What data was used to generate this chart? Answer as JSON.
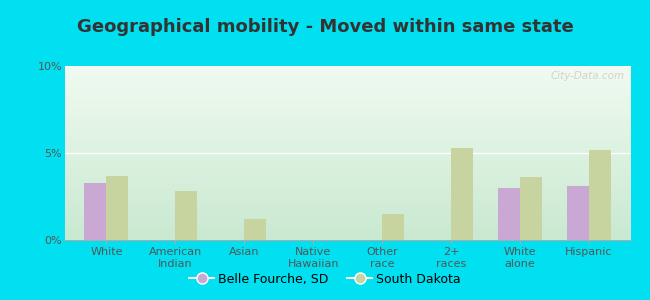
{
  "title": "Geographical mobility - Moved within same state",
  "categories": [
    "White",
    "American\nIndian",
    "Asian",
    "Native\nHawaiian",
    "Other\nrace",
    "2+\nraces",
    "White\nalone",
    "Hispanic"
  ],
  "belle_fourche": [
    3.3,
    0.0,
    0.0,
    0.0,
    0.0,
    0.0,
    3.0,
    3.1
  ],
  "south_dakota": [
    3.7,
    2.8,
    1.2,
    0.0,
    1.5,
    5.3,
    3.6,
    5.2
  ],
  "belle_color": "#c9a8d4",
  "sd_color": "#c8d4a0",
  "background_outer": "#00e0f0",
  "background_inner_top": "#f0faf0",
  "background_inner_bottom": "#c8e8d0",
  "ylim": [
    0,
    10
  ],
  "yticks": [
    0,
    5,
    10
  ],
  "ytick_labels": [
    "0%",
    "5%",
    "10%"
  ],
  "legend_belle": "Belle Fourche, SD",
  "legend_sd": "South Dakota",
  "bar_width": 0.32,
  "title_fontsize": 13,
  "tick_fontsize": 8,
  "legend_fontsize": 9,
  "watermark": "City-Data.com"
}
